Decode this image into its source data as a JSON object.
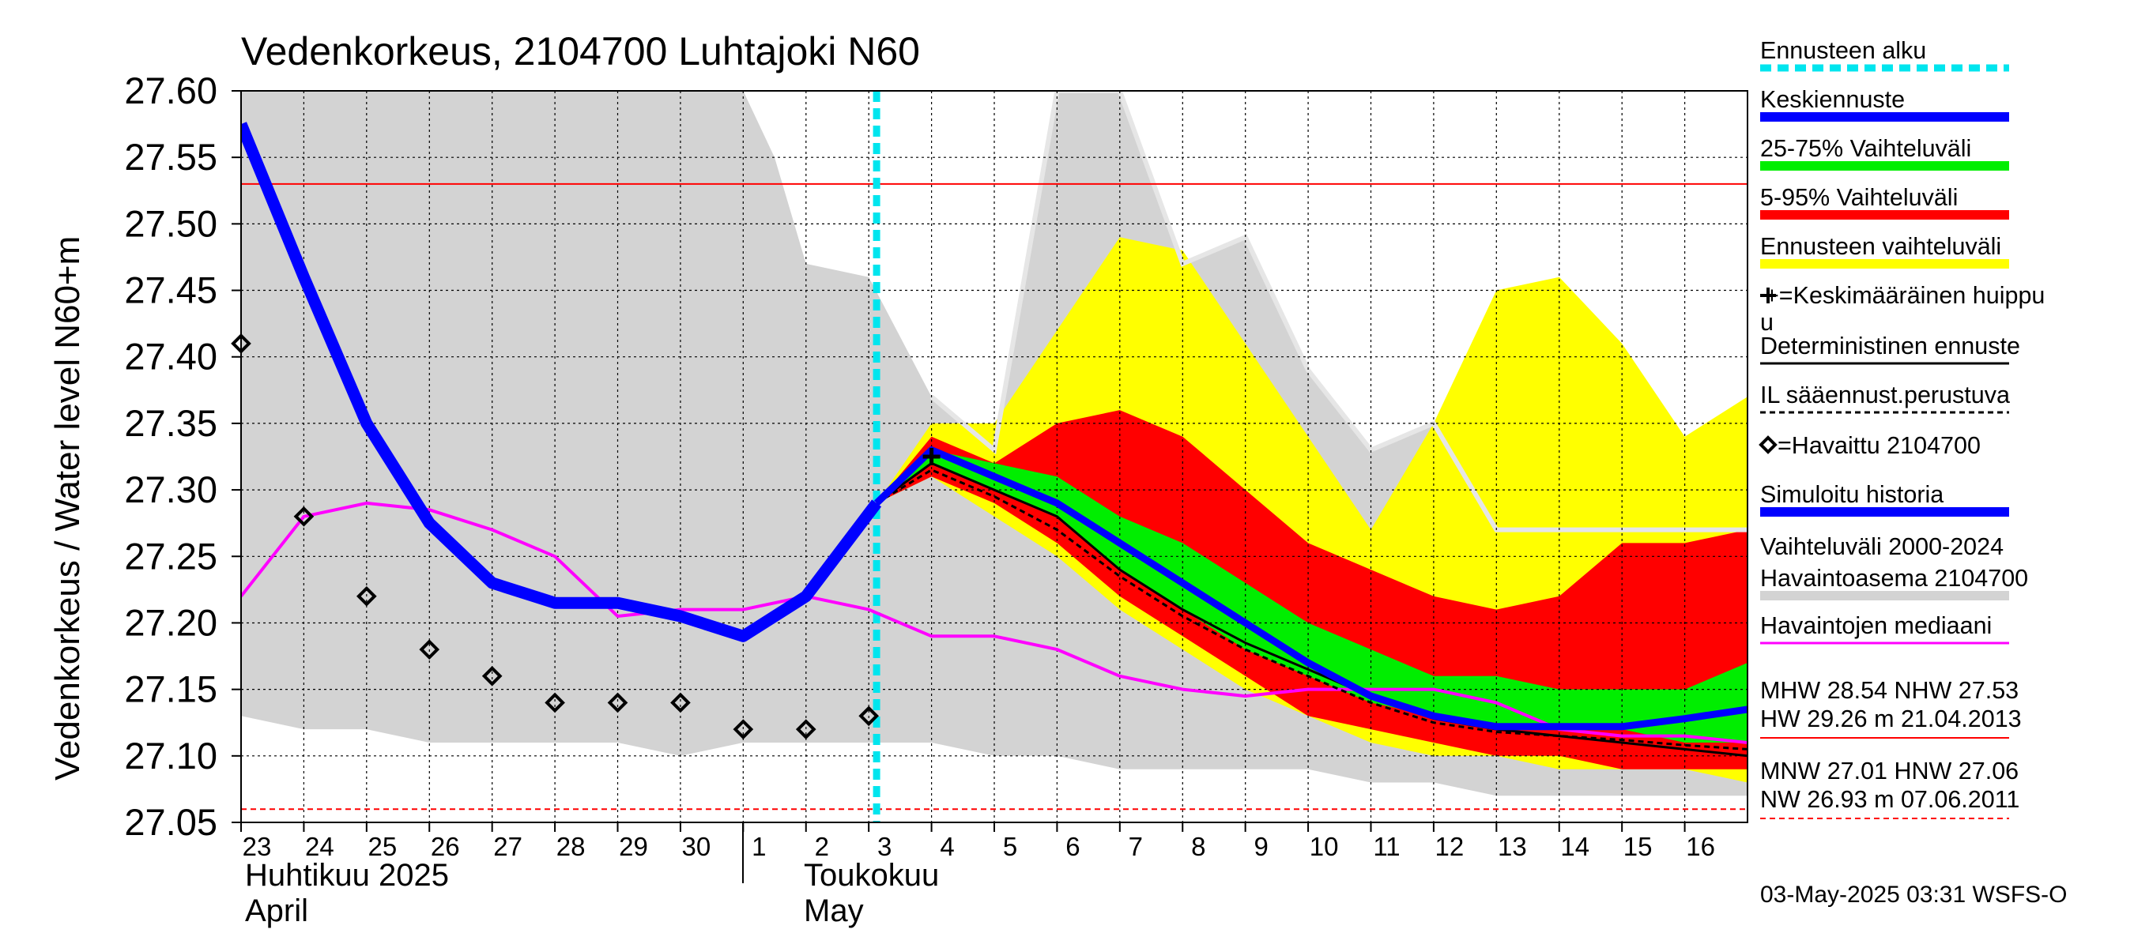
{
  "chart_data": {
    "type": "line",
    "title": "Vedenkorkeus, 2104700 Luhtajoki N60",
    "ylabel": "Vedenkorkeus / Water level   N60+m",
    "ylim": [
      27.05,
      27.6
    ],
    "yticks": [
      "27.05",
      "27.10",
      "27.15",
      "27.20",
      "27.25",
      "27.30",
      "27.35",
      "27.40",
      "27.45",
      "27.50",
      "27.55",
      "27.60"
    ],
    "x_tick_labels": [
      "23",
      "24",
      "25",
      "26",
      "27",
      "28",
      "29",
      "30",
      "1",
      "2",
      "3",
      "4",
      "5",
      "6",
      "7",
      "8",
      "9",
      "10",
      "11",
      "12",
      "13",
      "14",
      "15",
      "16"
    ],
    "x_tick_dates": [
      "2025-04-23",
      "2025-04-24",
      "2025-04-25",
      "2025-04-26",
      "2025-04-27",
      "2025-04-28",
      "2025-04-29",
      "2025-04-30",
      "2025-05-01",
      "2025-05-02",
      "2025-05-03",
      "2025-05-04",
      "2025-05-05",
      "2025-05-06",
      "2025-05-07",
      "2025-05-08",
      "2025-05-09",
      "2025-05-10",
      "2025-05-11",
      "2025-05-12",
      "2025-05-13",
      "2025-05-14",
      "2025-05-15",
      "2025-05-16"
    ],
    "month_labels": [
      {
        "line1": "Huhtikuu  2025",
        "line2": "April"
      },
      {
        "line1": "Toukokuu",
        "line2": "May"
      }
    ],
    "forecast_start": "2025-05-03 03:00",
    "grid": true,
    "reference_lines": [
      {
        "name": "NHW",
        "y": 27.53,
        "color": "#ff0000",
        "style": "solid"
      },
      {
        "name": "HNW",
        "y": 27.06,
        "color": "#ff0000",
        "style": "dashed"
      }
    ],
    "bands": {
      "history_2000_2024": {
        "x": [
          "2025-04-23",
          "2025-04-24",
          "2025-04-25",
          "2025-04-26",
          "2025-04-27",
          "2025-04-28",
          "2025-04-29",
          "2025-04-30",
          "2025-05-01",
          "2025-05-01 12:00",
          "2025-05-02",
          "2025-05-03",
          "2025-05-04",
          "2025-05-05",
          "2025-05-06",
          "2025-05-07",
          "2025-05-08",
          "2025-05-09",
          "2025-05-10",
          "2025-05-11",
          "2025-05-12",
          "2025-05-13",
          "2025-05-14",
          "2025-05-15",
          "2025-05-16",
          "2025-05-17"
        ],
        "upper": [
          27.6,
          27.6,
          27.6,
          27.6,
          27.6,
          27.6,
          27.6,
          27.6,
          27.6,
          27.55,
          27.47,
          27.46,
          27.37,
          27.33,
          27.6,
          27.6,
          27.47,
          27.49,
          27.39,
          27.33,
          27.35,
          27.27,
          27.27,
          27.27,
          27.27,
          27.27
        ],
        "lower": [
          27.13,
          27.12,
          27.12,
          27.11,
          27.11,
          27.11,
          27.11,
          27.1,
          27.11,
          27.11,
          27.11,
          27.11,
          27.11,
          27.1,
          27.1,
          27.09,
          27.09,
          27.09,
          27.09,
          27.08,
          27.08,
          27.07,
          27.07,
          27.07,
          27.07,
          27.07
        ]
      },
      "forecast_range": {
        "x": [
          "2025-05-03 03:00",
          "2025-05-04",
          "2025-05-05",
          "2025-05-06",
          "2025-05-07",
          "2025-05-08",
          "2025-05-09",
          "2025-05-10",
          "2025-05-11",
          "2025-05-12",
          "2025-05-13",
          "2025-05-14",
          "2025-05-15",
          "2025-05-16",
          "2025-05-17"
        ],
        "upper": [
          27.29,
          27.35,
          27.35,
          27.42,
          27.49,
          27.48,
          27.41,
          27.34,
          27.27,
          27.35,
          27.45,
          27.46,
          27.41,
          27.34,
          27.37
        ],
        "lower": [
          27.29,
          27.31,
          27.28,
          27.25,
          27.21,
          27.18,
          27.15,
          27.13,
          27.11,
          27.1,
          27.1,
          27.09,
          27.09,
          27.09,
          27.08
        ]
      },
      "p5_95": {
        "x": [
          "2025-05-03 03:00",
          "2025-05-04",
          "2025-05-05",
          "2025-05-06",
          "2025-05-07",
          "2025-05-08",
          "2025-05-09",
          "2025-05-10",
          "2025-05-11",
          "2025-05-12",
          "2025-05-13",
          "2025-05-14",
          "2025-05-15",
          "2025-05-16",
          "2025-05-17"
        ],
        "upper": [
          27.29,
          27.34,
          27.32,
          27.35,
          27.36,
          27.34,
          27.3,
          27.26,
          27.24,
          27.22,
          27.21,
          27.22,
          27.26,
          27.26,
          27.27
        ],
        "lower": [
          27.29,
          27.31,
          27.29,
          27.26,
          27.22,
          27.19,
          27.16,
          27.13,
          27.12,
          27.11,
          27.1,
          27.1,
          27.09,
          27.09,
          27.09
        ]
      },
      "p25_75": {
        "x": [
          "2025-05-03 03:00",
          "2025-05-04",
          "2025-05-05",
          "2025-05-06",
          "2025-05-07",
          "2025-05-08",
          "2025-05-09",
          "2025-05-10",
          "2025-05-11",
          "2025-05-12",
          "2025-05-13",
          "2025-05-14",
          "2025-05-15",
          "2025-05-16",
          "2025-05-17"
        ],
        "upper": [
          27.29,
          27.33,
          27.32,
          27.31,
          27.28,
          27.26,
          27.23,
          27.2,
          27.18,
          27.16,
          27.16,
          27.15,
          27.15,
          27.15,
          27.17
        ],
        "lower": [
          27.29,
          27.32,
          27.3,
          27.28,
          27.24,
          27.21,
          27.18,
          27.16,
          27.14,
          27.13,
          27.12,
          27.12,
          27.12,
          27.11,
          27.11
        ]
      }
    },
    "series": [
      {
        "name": "Simuloitu historia",
        "color": "#0000ff",
        "x": [
          "2025-04-23",
          "2025-04-24",
          "2025-04-25",
          "2025-04-26",
          "2025-04-27",
          "2025-04-28",
          "2025-04-29",
          "2025-04-30",
          "2025-05-01",
          "2025-05-02",
          "2025-05-03 03:00"
        ],
        "y": [
          27.575,
          27.46,
          27.35,
          27.275,
          27.23,
          27.215,
          27.215,
          27.205,
          27.19,
          27.22,
          27.29
        ]
      },
      {
        "name": "Keskiennuste",
        "color": "#0000ff",
        "x": [
          "2025-05-03 03:00",
          "2025-05-04",
          "2025-05-05",
          "2025-05-06",
          "2025-05-07",
          "2025-05-08",
          "2025-05-09",
          "2025-05-10",
          "2025-05-11",
          "2025-05-12",
          "2025-05-13",
          "2025-05-14",
          "2025-05-15",
          "2025-05-16",
          "2025-05-17"
        ],
        "y": [
          27.29,
          27.33,
          27.31,
          27.29,
          27.26,
          27.23,
          27.2,
          27.17,
          27.145,
          27.13,
          27.122,
          27.122,
          27.122,
          27.128,
          27.135
        ]
      },
      {
        "name": "Deterministinen ennuste",
        "color": "#000000",
        "x": [
          "2025-05-03 03:00",
          "2025-05-04",
          "2025-05-05",
          "2025-05-06",
          "2025-05-07",
          "2025-05-08",
          "2025-05-09",
          "2025-05-10",
          "2025-05-11",
          "2025-05-12",
          "2025-05-13",
          "2025-05-14",
          "2025-05-15",
          "2025-05-16",
          "2025-05-17"
        ],
        "y": [
          27.29,
          27.32,
          27.3,
          27.28,
          27.24,
          27.21,
          27.185,
          27.165,
          27.145,
          27.128,
          27.12,
          27.115,
          27.11,
          27.105,
          27.1
        ]
      },
      {
        "name": "IL sääennust.perustuva",
        "color": "#000000",
        "x": [
          "2025-05-03 03:00",
          "2025-05-04",
          "2025-05-05",
          "2025-05-06",
          "2025-05-07",
          "2025-05-08",
          "2025-05-09",
          "2025-05-10",
          "2025-05-11",
          "2025-05-12",
          "2025-05-13",
          "2025-05-14",
          "2025-05-15",
          "2025-05-16",
          "2025-05-17"
        ],
        "y": [
          27.29,
          27.315,
          27.295,
          27.27,
          27.235,
          27.205,
          27.18,
          27.16,
          27.14,
          27.125,
          27.118,
          27.115,
          27.112,
          27.108,
          27.105
        ]
      },
      {
        "name": "Havaintojen mediaani",
        "color": "#ff00ff",
        "x": [
          "2025-04-23",
          "2025-04-24",
          "2025-04-25",
          "2025-04-26",
          "2025-04-27",
          "2025-04-28",
          "2025-04-29",
          "2025-04-30",
          "2025-05-01",
          "2025-05-02",
          "2025-05-03",
          "2025-05-04",
          "2025-05-05",
          "2025-05-06",
          "2025-05-07",
          "2025-05-08",
          "2025-05-09",
          "2025-05-10",
          "2025-05-11",
          "2025-05-12",
          "2025-05-13",
          "2025-05-14",
          "2025-05-15",
          "2025-05-16",
          "2025-05-17"
        ],
        "y": [
          27.22,
          27.28,
          27.29,
          27.285,
          27.27,
          27.25,
          27.205,
          27.21,
          27.21,
          27.22,
          27.21,
          27.19,
          27.19,
          27.18,
          27.16,
          27.15,
          27.145,
          27.15,
          27.15,
          27.15,
          27.14,
          27.12,
          27.115,
          27.115,
          27.11
        ]
      },
      {
        "name": "Havaittu 2104700",
        "type": "scatter",
        "marker": "diamond",
        "color": "#000000",
        "x": [
          "2025-04-23",
          "2025-04-24",
          "2025-04-25",
          "2025-04-26",
          "2025-04-27",
          "2025-04-28",
          "2025-04-29",
          "2025-04-30",
          "2025-05-01",
          "2025-05-02",
          "2025-05-03"
        ],
        "y": [
          27.41,
          27.28,
          27.22,
          27.18,
          27.16,
          27.14,
          27.14,
          27.14,
          27.12,
          27.12,
          27.13
        ]
      }
    ],
    "forecast_peak": {
      "label": "Keskimääräinen huippu",
      "x": "2025-05-04",
      "y": 27.325
    },
    "legend": {
      "placement": "right",
      "items": [
        {
          "key": "ennusteen_alku",
          "label": "Ennusteen alku",
          "color": "#00e5ee",
          "style": "dashed"
        },
        {
          "key": "keskiennuste",
          "label": "Keskiennuste",
          "color": "#0000ff",
          "style": "thick"
        },
        {
          "key": "p25_75",
          "label": "25-75% Vaihteluväli",
          "color": "#00ee00",
          "style": "thick"
        },
        {
          "key": "p5_95",
          "label": "5-95% Vaihteluväli",
          "color": "#ff0000",
          "style": "thick"
        },
        {
          "key": "ennusteen_vaihteluvali",
          "label": "Ennusteen vaihteluväli",
          "color": "#ffff00",
          "style": "thick"
        },
        {
          "key": "huippu",
          "label": "+=Keskimääräinen huippu",
          "color": "#000000",
          "style": "none"
        },
        {
          "key": "deterministinen",
          "label": "Deterministinen ennuste",
          "color": "#000000",
          "style": "thin"
        },
        {
          "key": "il",
          "label": "IL sääennust.perustuva",
          "color": "#000000",
          "style": "dashed"
        },
        {
          "key": "havaittu",
          "label": "=Havaittu 2104700",
          "color": "#000000",
          "style": "none"
        },
        {
          "key": "simuloitu",
          "label": "Simuloitu historia",
          "color": "#0000ff",
          "style": "thick"
        },
        {
          "key": "vaihteluvali_hist",
          "label": "Vaihteluväli 2000-2024",
          "label2": " Havaintoasema 2104700",
          "color": "#d3d3d3",
          "style": "thick"
        },
        {
          "key": "mediaani",
          "label": "Havaintojen mediaani",
          "color": "#ff00ff",
          "style": "thin"
        }
      ],
      "stats": {
        "hw_line1": "MHW  28.54 NHW  27.53",
        "hw_line2": "HW  29.26 m 21.04.2013",
        "nw_line1": "MNW  27.01 HNW  27.06",
        "nw_line2": "NW  26.93 m 07.06.2011"
      }
    },
    "timestamp": "03-May-2025 03:31 WSFS-O",
    "colors": {
      "history_band": "#d3d3d3",
      "forecast_range": "#ffff00",
      "p5_95": "#ff0000",
      "p25_75": "#00ee00",
      "mean": "#0000ff",
      "median": "#ff00ff",
      "forecast_start": "#00e5ee",
      "reference": "#ff0000"
    }
  }
}
